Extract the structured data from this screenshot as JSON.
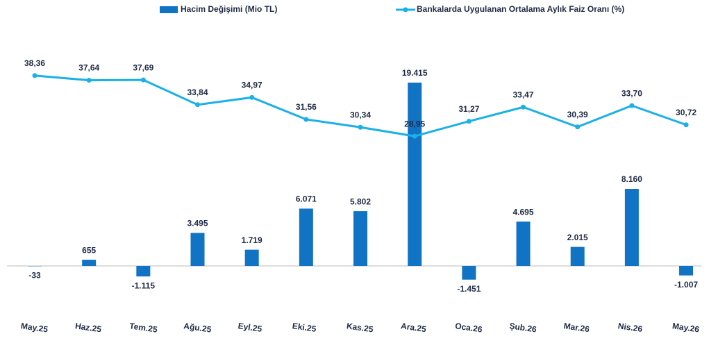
{
  "chart_data": {
    "type": "bar_line",
    "categories": [
      "May.25",
      "Haz.25",
      "Tem.25",
      "Ağu.25",
      "Eyl.25",
      "Eki.25",
      "Kas.25",
      "Ara.25",
      "Oca.26",
      "Şub.26",
      "Mar.26",
      "Nis.26",
      "May.26"
    ],
    "series": [
      {
        "name": "Hacim Değişimi (Mio TL)",
        "type": "bar",
        "color": "#1173c4",
        "values": [
          -33,
          655,
          -1115,
          3495,
          1719,
          6071,
          5802,
          19415,
          -1451,
          4695,
          2015,
          8160,
          -1007
        ],
        "value_labels": [
          "-33",
          "655",
          "-1.115",
          "3.495",
          "1.719",
          "6.071",
          "5.802",
          "19.415",
          "-1.451",
          "4.695",
          "2.015",
          "8.160",
          "-1.007"
        ]
      },
      {
        "name": "Bankalarda Uygulanan Ortalama Aylık Faiz Oranı (%)",
        "type": "line",
        "axis": "y2",
        "color": "#1ab0e8",
        "values": [
          38.36,
          37.64,
          37.69,
          33.84,
          34.97,
          31.56,
          30.34,
          28.95,
          31.27,
          33.47,
          30.39,
          33.7,
          30.72
        ],
        "value_labels": [
          "38,36",
          "37,64",
          "37,69",
          "33,84",
          "34,97",
          "31,56",
          "30,34",
          "28,95",
          "31,27",
          "33,47",
          "30,39",
          "33,70",
          "30,72"
        ]
      }
    ],
    "ylim": [
      -6000,
      24000
    ],
    "y2lim": [
      0,
      44
    ],
    "legend": "top"
  }
}
